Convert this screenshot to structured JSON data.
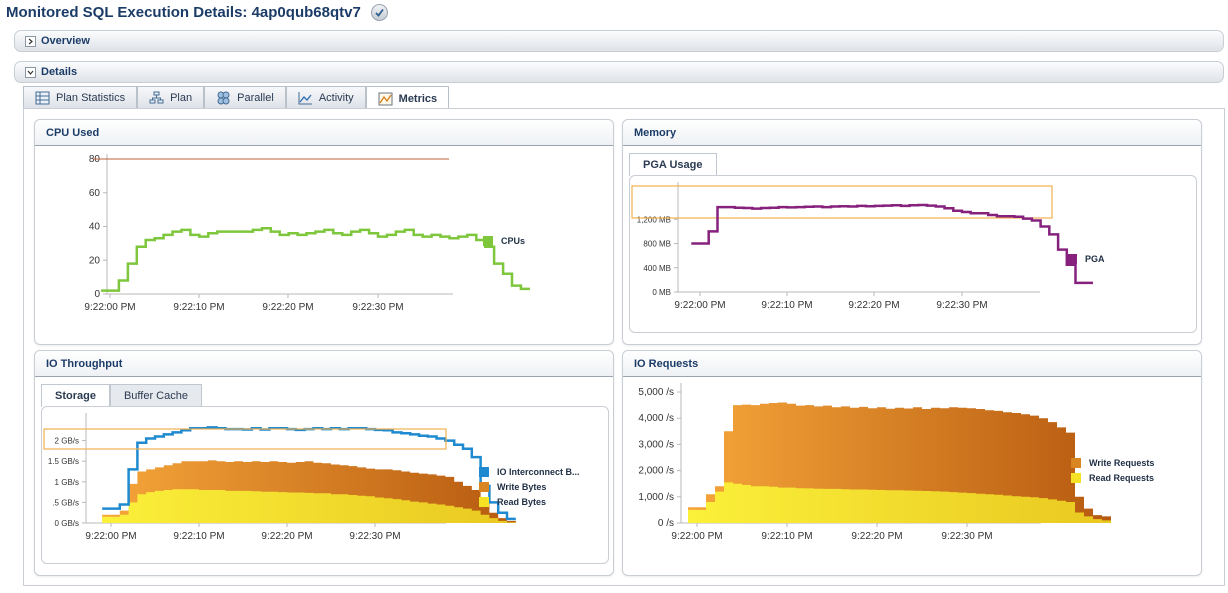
{
  "page": {
    "title": "Monitored SQL Execution Details: 4ap0qub68qtv7"
  },
  "sections": {
    "overview": "Overview",
    "details": "Details"
  },
  "tabs": [
    "Plan Statistics",
    "Plan",
    "Parallel",
    "Activity",
    "Metrics"
  ],
  "active_tab": "Metrics",
  "colors": {
    "cpu": "#7ec63b",
    "cpu_limit": "#c0603a",
    "pga": "#86217e",
    "interconnect": "#1f8ad0",
    "write": "#d98521",
    "read": "#f6e225",
    "highlight": "#f0b050"
  },
  "cpu": {
    "title": "CPU Used",
    "legend": [
      "CPUs"
    ]
  },
  "memory": {
    "title": "Memory",
    "subtabs": [
      "PGA Usage"
    ],
    "legend": [
      "PGA"
    ]
  },
  "io_throughput": {
    "title": "IO Throughput",
    "subtabs": [
      "Storage",
      "Buffer Cache"
    ],
    "legend": [
      "IO Interconnect B...",
      "Write Bytes",
      "Read Bytes"
    ]
  },
  "io_requests": {
    "title": "IO Requests",
    "legend": [
      "Write Requests",
      "Read Requests"
    ]
  },
  "chart_data": [
    {
      "id": "cpu",
      "type": "line",
      "title": "CPU Used",
      "x_ticks": [
        "9:22:00 PM",
        "9:22:10 PM",
        "9:22:20 PM",
        "9:22:30 PM"
      ],
      "y_ticks": [
        "0",
        "20",
        "40",
        "60",
        "80"
      ],
      "ylim": [
        0,
        80
      ],
      "x_start_s": -1,
      "x_step_s": 1,
      "reference_line": 80,
      "series": [
        {
          "name": "CPUs",
          "values": [
            2,
            2,
            8,
            18,
            28,
            32,
            33,
            35,
            37,
            38,
            35,
            34,
            36,
            37,
            37,
            37,
            37,
            38,
            39,
            37,
            35,
            36,
            35,
            36,
            37,
            38,
            36,
            35,
            37,
            38,
            36,
            34,
            35,
            37,
            38,
            35,
            34,
            35,
            34,
            33,
            34,
            35,
            32,
            28,
            18,
            12,
            5,
            3
          ]
        }
      ]
    },
    {
      "id": "pga",
      "type": "line",
      "title": "PGA Usage",
      "x_ticks": [
        "9:22:00 PM",
        "9:22:10 PM",
        "9:22:20 PM",
        "9:22:30 PM"
      ],
      "y_ticks": [
        "0 MB",
        "400 MB",
        "800 MB",
        "1,200 MB"
      ],
      "ylim": [
        0,
        1600
      ],
      "x_start_s": -1,
      "x_step_s": 1,
      "series": [
        {
          "name": "PGA",
          "values": [
            800,
            800,
            1000,
            1400,
            1400,
            1390,
            1385,
            1375,
            1385,
            1390,
            1400,
            1395,
            1400,
            1405,
            1410,
            1400,
            1410,
            1415,
            1410,
            1420,
            1415,
            1420,
            1425,
            1430,
            1420,
            1430,
            1435,
            1425,
            1410,
            1380,
            1340,
            1320,
            1300,
            1300,
            1270,
            1250,
            1250,
            1240,
            1210,
            1180,
            1080,
            950,
            700,
            450,
            150,
            150
          ]
        }
      ]
    },
    {
      "id": "io_throughput",
      "type": "area",
      "title": "Storage",
      "x_ticks": [
        "9:22:00 PM",
        "9:22:10 PM",
        "9:22:20 PM",
        "9:22:30 PM"
      ],
      "y_ticks": [
        "0 GB/s",
        ".5 GB/s",
        "1 GB/s",
        "1.5 GB/s",
        "2 GB/s"
      ],
      "ylim": [
        0,
        2.5
      ],
      "x_start_s": -1,
      "x_step_s": 1,
      "series": [
        {
          "name": "IO Interconnect B...",
          "values": [
            0.35,
            0.35,
            0.45,
            1.3,
            1.95,
            2.05,
            2.1,
            2.15,
            2.2,
            2.25,
            2.3,
            2.3,
            2.32,
            2.3,
            2.28,
            2.28,
            2.27,
            2.3,
            2.27,
            2.3,
            2.3,
            2.28,
            2.26,
            2.28,
            2.3,
            2.28,
            2.3,
            2.28,
            2.3,
            2.3,
            2.28,
            2.26,
            2.25,
            2.2,
            2.18,
            2.15,
            2.12,
            2.1,
            2.05,
            2.0,
            1.9,
            1.8,
            1.6,
            0.9,
            0.5,
            0.25,
            0.1
          ]
        },
        {
          "name": "Write Bytes",
          "values": [
            0.2,
            0.2,
            0.3,
            0.95,
            1.25,
            1.3,
            1.35,
            1.4,
            1.45,
            1.5,
            1.5,
            1.5,
            1.52,
            1.5,
            1.48,
            1.5,
            1.48,
            1.5,
            1.48,
            1.5,
            1.48,
            1.46,
            1.48,
            1.5,
            1.46,
            1.45,
            1.42,
            1.4,
            1.38,
            1.35,
            1.32,
            1.3,
            1.3,
            1.28,
            1.25,
            1.22,
            1.2,
            1.18,
            1.15,
            1.12,
            1.0,
            0.9,
            0.8,
            0.5,
            0.25,
            0.12,
            0.05
          ]
        },
        {
          "name": "Read Bytes",
          "values": [
            0.15,
            0.15,
            0.2,
            0.5,
            0.7,
            0.75,
            0.78,
            0.8,
            0.82,
            0.82,
            0.82,
            0.8,
            0.8,
            0.8,
            0.78,
            0.78,
            0.78,
            0.77,
            0.76,
            0.76,
            0.75,
            0.74,
            0.74,
            0.73,
            0.72,
            0.72,
            0.7,
            0.7,
            0.68,
            0.66,
            0.65,
            0.62,
            0.6,
            0.58,
            0.55,
            0.52,
            0.5,
            0.47,
            0.45,
            0.42,
            0.38,
            0.35,
            0.3,
            0.2,
            0.12,
            0.05,
            0.02
          ]
        }
      ]
    },
    {
      "id": "io_requests",
      "type": "area",
      "title": "IO Requests",
      "x_ticks": [
        "9:22:00 PM",
        "9:22:10 PM",
        "9:22:20 PM",
        "9:22:30 PM"
      ],
      "y_ticks": [
        "0  /s",
        "1,000  /s",
        "2,000  /s",
        "3,000  /s",
        "4,000  /s",
        "5,000  /s"
      ],
      "ylim": [
        0,
        5000
      ],
      "x_start_s": -1,
      "x_step_s": 1,
      "series": [
        {
          "name": "Write Requests",
          "values": [
            600,
            600,
            1100,
            1400,
            3500,
            4500,
            4520,
            4500,
            4550,
            4580,
            4600,
            4550,
            4480,
            4500,
            4450,
            4480,
            4420,
            4450,
            4400,
            4430,
            4380,
            4420,
            4360,
            4400,
            4370,
            4420,
            4350,
            4400,
            4380,
            4420,
            4400,
            4380,
            4350,
            4300,
            4280,
            4230,
            4200,
            4150,
            4100,
            4000,
            3850,
            3650,
            3450,
            1000,
            550,
            300,
            250
          ]
        },
        {
          "name": "Read Requests",
          "values": [
            500,
            500,
            800,
            1200,
            1550,
            1500,
            1450,
            1400,
            1400,
            1380,
            1350,
            1350,
            1330,
            1320,
            1310,
            1300,
            1300,
            1290,
            1280,
            1280,
            1270,
            1260,
            1250,
            1250,
            1240,
            1230,
            1220,
            1210,
            1200,
            1180,
            1160,
            1140,
            1120,
            1100,
            1080,
            1050,
            1020,
            1000,
            980,
            950,
            900,
            850,
            800,
            400,
            250,
            150,
            100
          ]
        }
      ]
    }
  ]
}
